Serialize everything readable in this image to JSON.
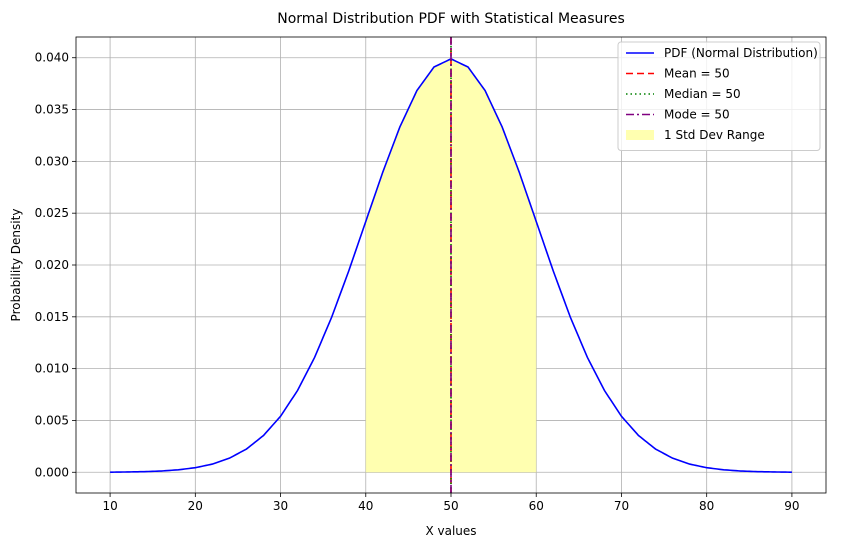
{
  "chart_data": {
    "type": "line",
    "title": "Normal Distribution PDF with Statistical Measures",
    "xlabel": "X values",
    "ylabel": "Probability Density",
    "xlim": [
      6,
      94
    ],
    "ylim": [
      -0.002,
      0.042
    ],
    "grid": true,
    "legend_position": "top-right",
    "xticks": [
      10,
      20,
      30,
      40,
      50,
      60,
      70,
      80,
      90
    ],
    "xtick_labels": [
      "10",
      "20",
      "30",
      "40",
      "50",
      "60",
      "70",
      "80",
      "90"
    ],
    "yticks": [
      0,
      0.005,
      0.01,
      0.015,
      0.02,
      0.025,
      0.03,
      0.035,
      0.04
    ],
    "ytick_labels": [
      "0.000",
      "0.005",
      "0.010",
      "0.015",
      "0.020",
      "0.025",
      "0.030",
      "0.035",
      "0.040"
    ],
    "series": [
      {
        "name": "PDF (Normal Distribution)",
        "color": "#0000ff",
        "style": "solid",
        "x": [
          10,
          12,
          14,
          16,
          18,
          20,
          22,
          24,
          26,
          28,
          30,
          32,
          34,
          36,
          38,
          40,
          42,
          44,
          46,
          48,
          50,
          52,
          54,
          56,
          58,
          60,
          62,
          64,
          66,
          68,
          70,
          72,
          74,
          76,
          78,
          80,
          82,
          84,
          86,
          88,
          90
        ],
        "y": [
          1e-05,
          3e-05,
          6e-05,
          0.00012,
          0.00024,
          0.00044,
          0.00079,
          0.00136,
          0.00224,
          0.00355,
          0.0054,
          0.0079,
          0.01109,
          0.01497,
          0.01942,
          0.0242,
          0.02897,
          0.03332,
          0.03683,
          0.0391,
          0.03989,
          0.0391,
          0.03683,
          0.03332,
          0.02897,
          0.0242,
          0.01942,
          0.01497,
          0.01109,
          0.0079,
          0.0054,
          0.00355,
          0.00224,
          0.00136,
          0.00079,
          0.00044,
          0.00024,
          0.00012,
          6e-05,
          3e-05,
          1e-05
        ]
      }
    ],
    "vlines": [
      {
        "name": "Mean = 50",
        "x": 50,
        "color": "#ff0000",
        "style": "dashed"
      },
      {
        "name": "Median = 50",
        "x": 50,
        "color": "#008000",
        "style": "dotted"
      },
      {
        "name": "Mode = 50",
        "x": 50,
        "color": "#800080",
        "style": "dashdot"
      }
    ],
    "shaded_region": {
      "name": "1 Std Dev Range",
      "x_start": 40,
      "x_end": 60,
      "color": "#ffffb0"
    }
  }
}
